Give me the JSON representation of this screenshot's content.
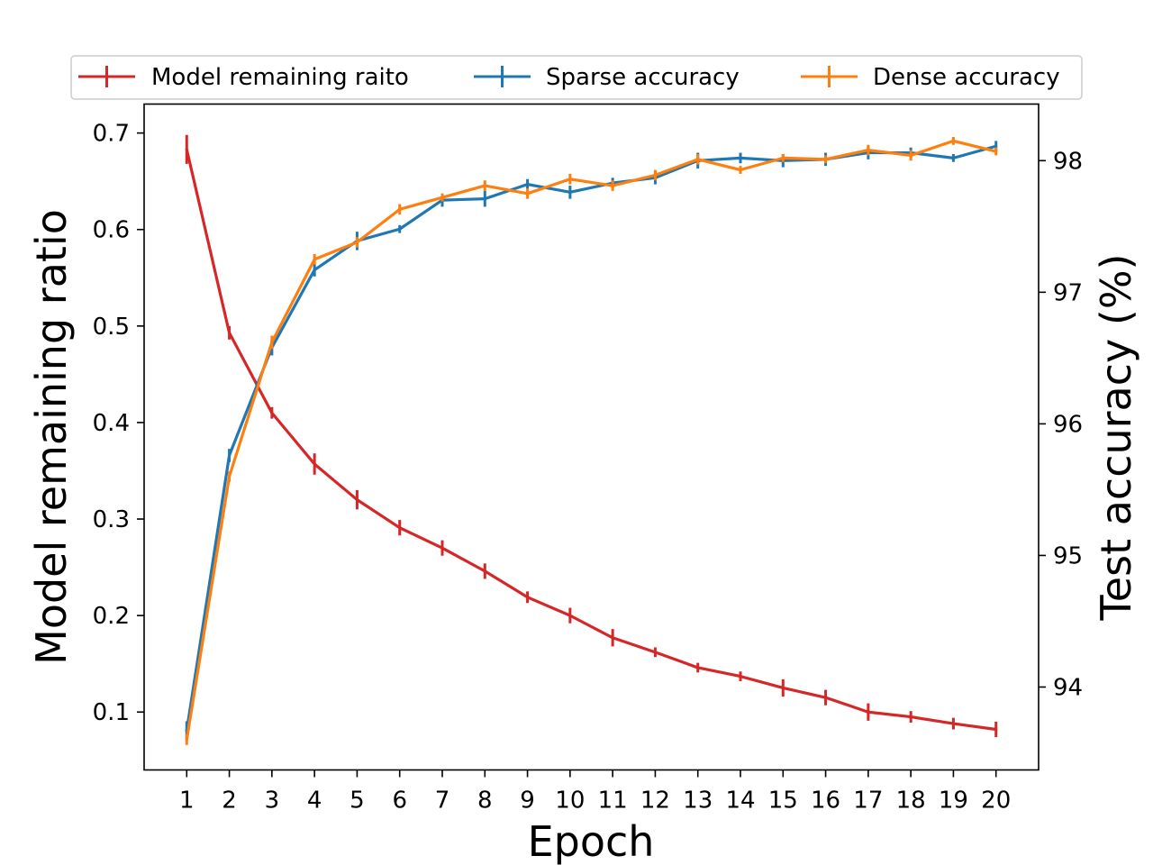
{
  "chart_data": {
    "type": "line",
    "title": "",
    "xlabel": "Epoch",
    "ylabel_left": "Model remaining ratio",
    "ylabel_right": "Test accuracy (%)",
    "x": [
      1,
      2,
      3,
      4,
      5,
      6,
      7,
      8,
      9,
      10,
      11,
      12,
      13,
      14,
      15,
      16,
      17,
      18,
      19,
      20
    ],
    "x_tick_labels": [
      "1",
      "2",
      "3",
      "4",
      "5",
      "6",
      "7",
      "8",
      "9",
      "10",
      "11",
      "12",
      "13",
      "14",
      "15",
      "16",
      "17",
      "18",
      "19",
      "20"
    ],
    "xlim": [
      0.0,
      21.0
    ],
    "ylim_left": [
      0.04,
      0.73
    ],
    "ylim_right": [
      93.37,
      98.43
    ],
    "left_ticks": [
      0.1,
      0.2,
      0.3,
      0.4,
      0.5,
      0.6,
      0.7
    ],
    "left_tick_labels": [
      "0.1",
      "0.2",
      "0.3",
      "0.4",
      "0.5",
      "0.6",
      "0.7"
    ],
    "right_ticks": [
      94,
      95,
      96,
      97,
      98
    ],
    "right_tick_labels": [
      "94",
      "95",
      "96",
      "97",
      "98"
    ],
    "legend_position": "top, above plot",
    "grid": false,
    "series": [
      {
        "name": "Model remaining raito",
        "axis": "left",
        "color": "#d62728",
        "values": [
          0.683,
          0.493,
          0.41,
          0.357,
          0.32,
          0.291,
          0.27,
          0.246,
          0.219,
          0.2,
          0.177,
          0.162,
          0.146,
          0.137,
          0.125,
          0.115,
          0.1,
          0.095,
          0.088,
          0.082
        ],
        "errors": [
          0.015,
          0.007,
          0.006,
          0.011,
          0.01,
          0.008,
          0.008,
          0.008,
          0.006,
          0.008,
          0.009,
          0.005,
          0.005,
          0.005,
          0.009,
          0.008,
          0.009,
          0.006,
          0.006,
          0.008
        ]
      },
      {
        "name": "Sparse accuracy",
        "axis": "right",
        "color": "#1f77b4",
        "values": [
          93.67,
          95.76,
          96.58,
          97.17,
          97.39,
          97.48,
          97.7,
          97.71,
          97.82,
          97.76,
          97.83,
          97.87,
          98.0,
          98.02,
          98.0,
          98.01,
          98.06,
          98.06,
          98.02,
          98.11
        ],
        "errors": [
          0.07,
          0.05,
          0.06,
          0.05,
          0.07,
          0.03,
          0.05,
          0.06,
          0.04,
          0.05,
          0.04,
          0.05,
          0.06,
          0.04,
          0.05,
          0.05,
          0.05,
          0.04,
          0.03,
          0.04
        ]
      },
      {
        "name": "Dense accuracy",
        "axis": "right",
        "color": "#ff7f0e",
        "values": [
          93.6,
          95.6,
          96.62,
          97.25,
          97.38,
          97.63,
          97.72,
          97.81,
          97.75,
          97.86,
          97.81,
          97.89,
          98.01,
          97.93,
          98.02,
          98.01,
          98.08,
          98.04,
          98.15,
          98.07
        ],
        "errors": [
          0.04,
          0.04,
          0.05,
          0.04,
          0.04,
          0.04,
          0.03,
          0.04,
          0.04,
          0.04,
          0.04,
          0.04,
          0.04,
          0.03,
          0.03,
          0.03,
          0.04,
          0.04,
          0.03,
          0.03
        ]
      }
    ]
  }
}
